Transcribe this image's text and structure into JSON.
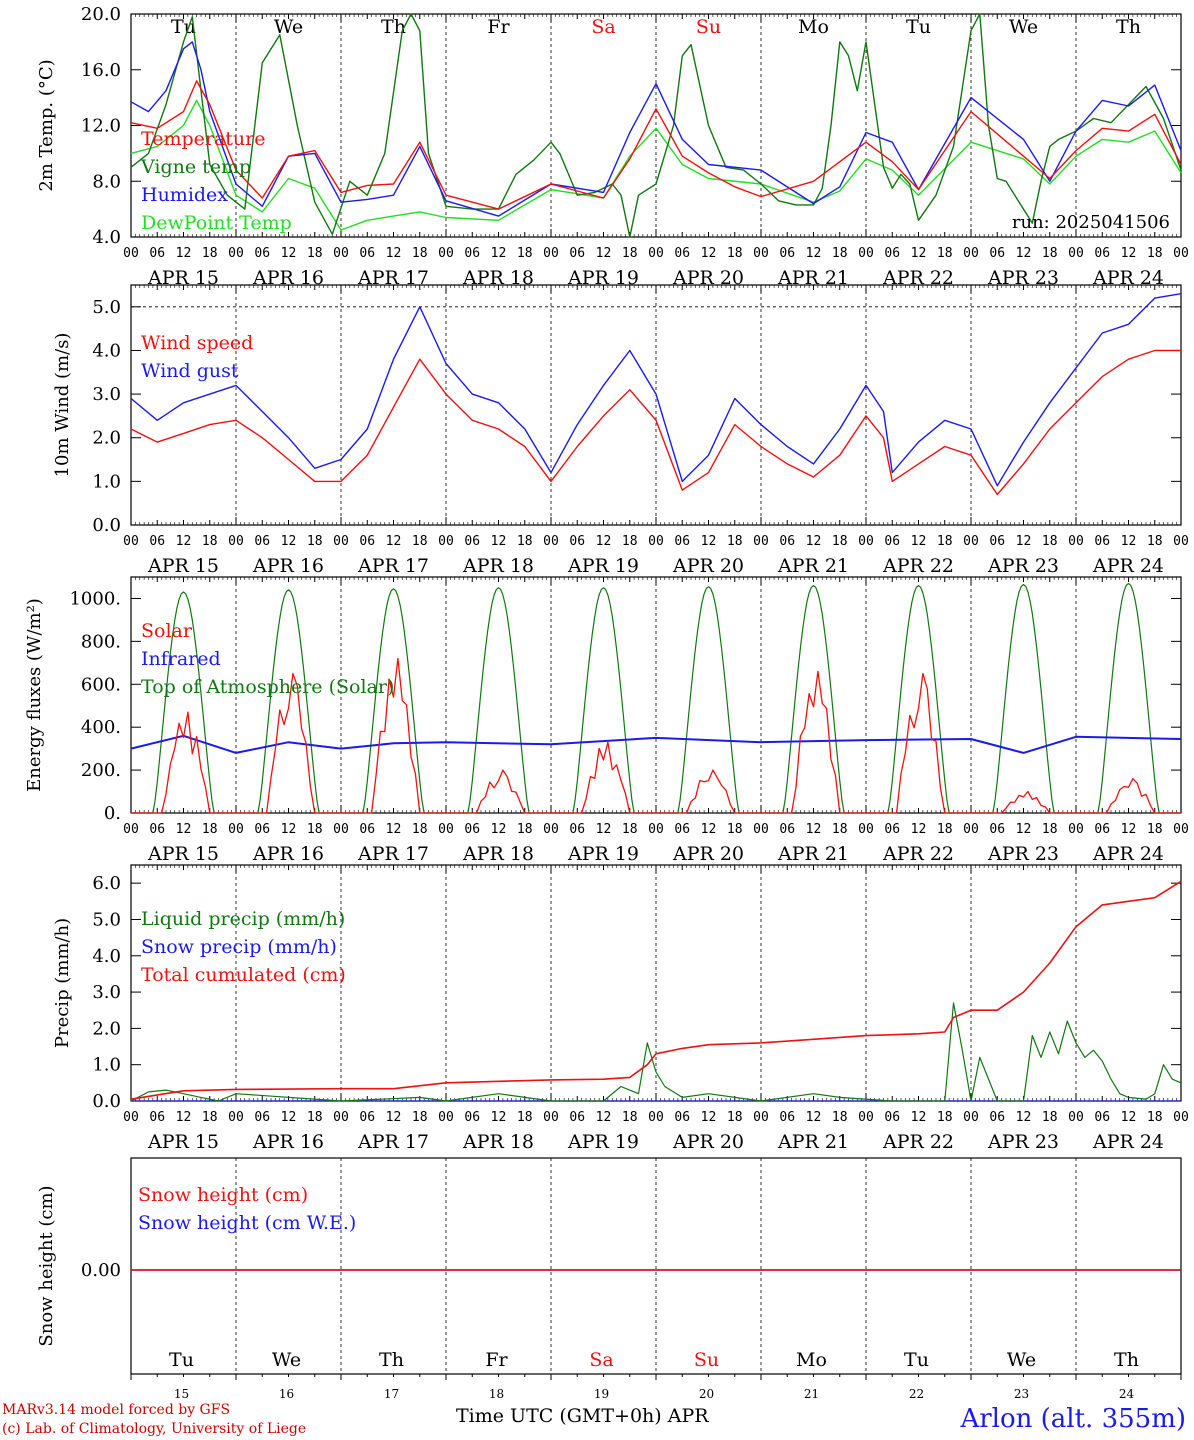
{
  "colors": {
    "red": "#ee1111",
    "blue": "#1a1aee",
    "green": "#117711",
    "lightgreen": "#22dd22",
    "weekend": "#ee1111",
    "weekday": "#000000"
  },
  "days": [
    "Tu",
    "We",
    "Th",
    "Fr",
    "Sa",
    "Su",
    "Mo",
    "Tu",
    "We",
    "Th"
  ],
  "weekend_flags": [
    false,
    false,
    false,
    false,
    true,
    true,
    false,
    false,
    false,
    false
  ],
  "dates": [
    "APR 15",
    "APR 16",
    "APR 17",
    "APR 18",
    "APR 19",
    "APR 20",
    "APR 21",
    "APR 22",
    "APR 23",
    "APR 24"
  ],
  "day_numbers": [
    "15",
    "16",
    "17",
    "18",
    "19",
    "20",
    "21",
    "22",
    "23",
    "24"
  ],
  "hour_ticks": [
    "00",
    "06",
    "12",
    "18"
  ],
  "hour_tick_end": "00",
  "footer": {
    "credit_line1": "MARv3.14 model forced by GFS",
    "credit_line2": "(c) Lab. of Climatology, University of Liege",
    "xaxis_title": "Time UTC (GMT+0h) APR",
    "station": "Arlon (alt. 355m)"
  },
  "chart_data": [
    {
      "type": "line",
      "ylabel": "2m Temp. (°C)",
      "ylim": [
        4,
        20
      ],
      "yticks": [
        "4.0",
        "8.0",
        "12.0",
        "16.0",
        "20.0"
      ],
      "annotation": "run: 2025041506",
      "legend_placement": "top-left",
      "series": [
        {
          "name": "Temperature",
          "color": "red",
          "x_hours": [
            0,
            6,
            12,
            15,
            18,
            24,
            30,
            36,
            42,
            48,
            54,
            60,
            66,
            72,
            84,
            96,
            108,
            114,
            120,
            126,
            132,
            138,
            144,
            156,
            168,
            174,
            180,
            192,
            204,
            210,
            216,
            222,
            228,
            234,
            240
          ],
          "values": [
            12.2,
            11.8,
            13.0,
            15.2,
            13.5,
            8.8,
            6.8,
            9.8,
            10.2,
            7.2,
            7.7,
            7.8,
            10.8,
            7.0,
            6.0,
            7.8,
            6.8,
            9.6,
            13.2,
            9.8,
            8.6,
            7.6,
            6.9,
            8.0,
            10.8,
            9.4,
            7.4,
            13.0,
            9.8,
            8.2,
            10.2,
            11.8,
            11.6,
            12.8,
            9.2
          ]
        },
        {
          "name": "Vigne temp",
          "color": "green",
          "x_hours": [
            0,
            4,
            8,
            12,
            14,
            16,
            18,
            22,
            26,
            30,
            34,
            38,
            42,
            46,
            50,
            54,
            58,
            62,
            64,
            66,
            68,
            72,
            78,
            84,
            88,
            92,
            96,
            98,
            102,
            106,
            110,
            112,
            114,
            116,
            120,
            124,
            126,
            128,
            132,
            136,
            140,
            144,
            148,
            152,
            156,
            158,
            160,
            162,
            164,
            166,
            168,
            172,
            174,
            176,
            178,
            180,
            184,
            188,
            192,
            194,
            196,
            198,
            200,
            204,
            206,
            208,
            210,
            212,
            216,
            220,
            224,
            228,
            232,
            236,
            240
          ],
          "values": [
            9.0,
            10.0,
            13.5,
            18.0,
            19.8,
            14.5,
            9.2,
            7.0,
            6.0,
            16.5,
            18.5,
            12.0,
            6.5,
            4.2,
            8.0,
            7.0,
            10.0,
            18.8,
            20.0,
            18.8,
            10.0,
            6.2,
            6.0,
            6.0,
            8.5,
            9.5,
            10.8,
            10.0,
            7.0,
            7.2,
            7.8,
            7.0,
            4.0,
            7.0,
            7.8,
            12.0,
            17.0,
            17.8,
            12.0,
            9.0,
            8.8,
            7.8,
            6.6,
            6.3,
            6.3,
            7.5,
            12.0,
            18.0,
            17.0,
            14.5,
            18.0,
            9.0,
            7.5,
            8.5,
            7.8,
            5.2,
            7.0,
            10.5,
            18.8,
            20.0,
            12.0,
            8.2,
            8.0,
            6.0,
            5.0,
            8.0,
            10.5,
            11.0,
            11.6,
            12.5,
            12.2,
            13.5,
            14.8,
            12.5,
            8.8
          ]
        },
        {
          "name": "Humidex",
          "color": "blue",
          "x_hours": [
            0,
            4,
            8,
            12,
            14,
            16,
            18,
            24,
            30,
            36,
            42,
            48,
            54,
            60,
            66,
            72,
            84,
            96,
            108,
            114,
            120,
            126,
            132,
            144,
            156,
            162,
            168,
            174,
            180,
            192,
            204,
            210,
            216,
            222,
            228,
            234,
            240
          ],
          "values": [
            13.7,
            13.0,
            14.5,
            17.5,
            18.0,
            16.0,
            13.0,
            7.8,
            6.2,
            9.8,
            10.0,
            6.5,
            6.7,
            7.0,
            10.5,
            6.6,
            5.5,
            7.8,
            7.2,
            11.5,
            15.0,
            11.0,
            9.2,
            8.8,
            6.4,
            7.6,
            11.5,
            10.8,
            7.4,
            14.0,
            11.0,
            8.0,
            11.6,
            13.8,
            13.4,
            14.9,
            10.2
          ]
        },
        {
          "name": "DewPoint Temp",
          "color": "lightgreen",
          "x_hours": [
            0,
            6,
            12,
            15,
            18,
            24,
            30,
            36,
            42,
            48,
            54,
            60,
            66,
            72,
            84,
            96,
            108,
            114,
            120,
            126,
            132,
            144,
            156,
            162,
            168,
            174,
            180,
            192,
            204,
            210,
            216,
            222,
            228,
            234,
            240
          ],
          "values": [
            10.0,
            10.5,
            12.0,
            13.8,
            12.0,
            7.0,
            5.8,
            8.2,
            7.5,
            4.5,
            5.2,
            5.5,
            5.8,
            5.4,
            5.2,
            7.4,
            6.8,
            9.8,
            11.8,
            9.2,
            8.2,
            7.8,
            6.5,
            7.3,
            9.6,
            8.8,
            7.0,
            10.8,
            9.6,
            7.8,
            9.8,
            11.0,
            10.8,
            11.6,
            8.6
          ]
        }
      ]
    },
    {
      "type": "line",
      "ylabel": "10m Wind (m/s)",
      "ylim": [
        0,
        5.5
      ],
      "yticks": [
        "0.0",
        "1.0",
        "2.0",
        "3.0",
        "4.0",
        "5.0"
      ],
      "legend_placement": "top-left",
      "series": [
        {
          "name": "Wind speed",
          "color": "red",
          "x_hours": [
            0,
            6,
            12,
            18,
            24,
            30,
            36,
            42,
            48,
            54,
            60,
            66,
            72,
            78,
            84,
            90,
            96,
            102,
            108,
            114,
            120,
            126,
            132,
            138,
            144,
            150,
            156,
            162,
            168,
            172,
            174,
            180,
            186,
            192,
            198,
            204,
            210,
            216,
            222,
            228,
            234,
            240
          ],
          "values": [
            2.2,
            1.9,
            2.1,
            2.3,
            2.4,
            2.0,
            1.5,
            1.0,
            1.0,
            1.6,
            2.7,
            3.8,
            3.0,
            2.4,
            2.2,
            1.8,
            1.0,
            1.8,
            2.5,
            3.1,
            2.4,
            0.8,
            1.2,
            2.3,
            1.8,
            1.4,
            1.1,
            1.6,
            2.5,
            2.0,
            1.0,
            1.4,
            1.8,
            1.6,
            0.7,
            1.4,
            2.2,
            2.8,
            3.4,
            3.8,
            4.0,
            4.0
          ]
        },
        {
          "name": "Wind gust",
          "color": "blue",
          "x_hours": [
            0,
            6,
            12,
            18,
            24,
            30,
            36,
            42,
            48,
            54,
            60,
            66,
            72,
            78,
            84,
            90,
            96,
            102,
            108,
            114,
            120,
            126,
            132,
            138,
            144,
            150,
            156,
            162,
            168,
            172,
            174,
            180,
            186,
            192,
            198,
            204,
            210,
            216,
            222,
            228,
            234,
            240
          ],
          "values": [
            2.9,
            2.4,
            2.8,
            3.0,
            3.2,
            2.6,
            2.0,
            1.3,
            1.5,
            2.2,
            3.8,
            5.0,
            3.7,
            3.0,
            2.8,
            2.2,
            1.2,
            2.3,
            3.2,
            4.0,
            3.0,
            1.0,
            1.6,
            2.9,
            2.3,
            1.8,
            1.4,
            2.2,
            3.2,
            2.6,
            1.2,
            1.9,
            2.4,
            2.2,
            0.9,
            1.9,
            2.8,
            3.6,
            4.4,
            4.6,
            5.2,
            5.3
          ]
        }
      ]
    },
    {
      "type": "line",
      "ylabel": "Energy fluxes (W/m²)",
      "ylim": [
        0,
        1100
      ],
      "yticks": [
        "0.",
        "200.",
        "400.",
        "600.",
        "800.",
        "1000."
      ],
      "legend_placement": "top-left",
      "series": [
        {
          "name": "Solar",
          "color": "red",
          "peaks": [
            470,
            650,
            720,
            200,
            330,
            200,
            660,
            650,
            100,
            160
          ]
        },
        {
          "name": "Infrared",
          "color": "blue",
          "x_hours": [
            0,
            12,
            24,
            36,
            48,
            60,
            72,
            96,
            120,
            144,
            168,
            192,
            204,
            216,
            240
          ],
          "values": [
            300,
            360,
            280,
            330,
            300,
            325,
            330,
            320,
            350,
            330,
            340,
            345,
            280,
            355,
            345
          ]
        },
        {
          "name": "Top of Atmosphere (Solar)",
          "color": "green",
          "peaks": [
            1030,
            1040,
            1045,
            1050,
            1050,
            1055,
            1060,
            1060,
            1065,
            1070
          ]
        }
      ]
    },
    {
      "type": "line",
      "ylabel": "Precip (mm/h)",
      "ylim": [
        0,
        6.5
      ],
      "yticks": [
        "0.0",
        "1.0",
        "2.0",
        "3.0",
        "4.0",
        "5.0",
        "6.0"
      ],
      "legend_placement": "top-left",
      "series": [
        {
          "name": "Liquid precip (mm/h)",
          "color": "green",
          "x_hours": [
            0,
            4,
            8,
            12,
            16,
            20,
            24,
            48,
            66,
            72,
            84,
            96,
            108,
            112,
            116,
            118,
            120,
            122,
            126,
            132,
            144,
            156,
            162,
            174,
            180,
            186,
            188,
            190,
            192,
            194,
            198,
            204,
            206,
            208,
            210,
            212,
            214,
            216,
            218,
            220,
            222,
            224,
            226,
            228,
            232,
            234,
            236,
            238,
            240
          ],
          "values": [
            0.0,
            0.25,
            0.3,
            0.2,
            0.1,
            0.0,
            0.2,
            0.0,
            0.1,
            0.0,
            0.2,
            0.0,
            0.0,
            0.4,
            0.2,
            1.6,
            0.8,
            0.4,
            0.1,
            0.2,
            0.0,
            0.2,
            0.1,
            0.0,
            0.0,
            0.0,
            2.7,
            1.4,
            0.0,
            1.2,
            0.0,
            0.0,
            1.8,
            1.2,
            1.9,
            1.3,
            2.2,
            1.6,
            1.2,
            1.4,
            1.1,
            0.6,
            0.2,
            0.1,
            0.05,
            0.2,
            1.0,
            0.6,
            0.5
          ]
        },
        {
          "name": "Snow precip (mm/h)",
          "color": "blue",
          "x_hours": [
            0,
            240
          ],
          "values": [
            0.0,
            0.0
          ]
        },
        {
          "name": "Total cumulated (cm)",
          "color": "red",
          "x_hours": [
            0,
            12,
            24,
            48,
            60,
            72,
            96,
            108,
            114,
            118,
            120,
            126,
            132,
            144,
            156,
            168,
            180,
            186,
            188,
            192,
            198,
            204,
            210,
            216,
            222,
            228,
            234,
            240
          ],
          "values": [
            0.05,
            0.28,
            0.32,
            0.34,
            0.34,
            0.5,
            0.58,
            0.6,
            0.65,
            1.0,
            1.3,
            1.45,
            1.55,
            1.6,
            1.7,
            1.8,
            1.85,
            1.9,
            2.3,
            2.5,
            2.5,
            3.0,
            3.8,
            4.8,
            5.4,
            5.5,
            5.6,
            6.05
          ]
        }
      ]
    },
    {
      "type": "line",
      "ylabel": "Snow height (cm)",
      "yticks": [
        "0.00"
      ],
      "legend_placement": "top-left",
      "series": [
        {
          "name": "Snow height (cm)",
          "color": "red",
          "x_hours": [
            0,
            240
          ],
          "values": [
            0,
            0
          ]
        },
        {
          "name": "Snow height (cm W.E.)",
          "color": "blue",
          "x_hours": [
            0,
            240
          ],
          "values": [
            0,
            0
          ]
        }
      ]
    }
  ]
}
